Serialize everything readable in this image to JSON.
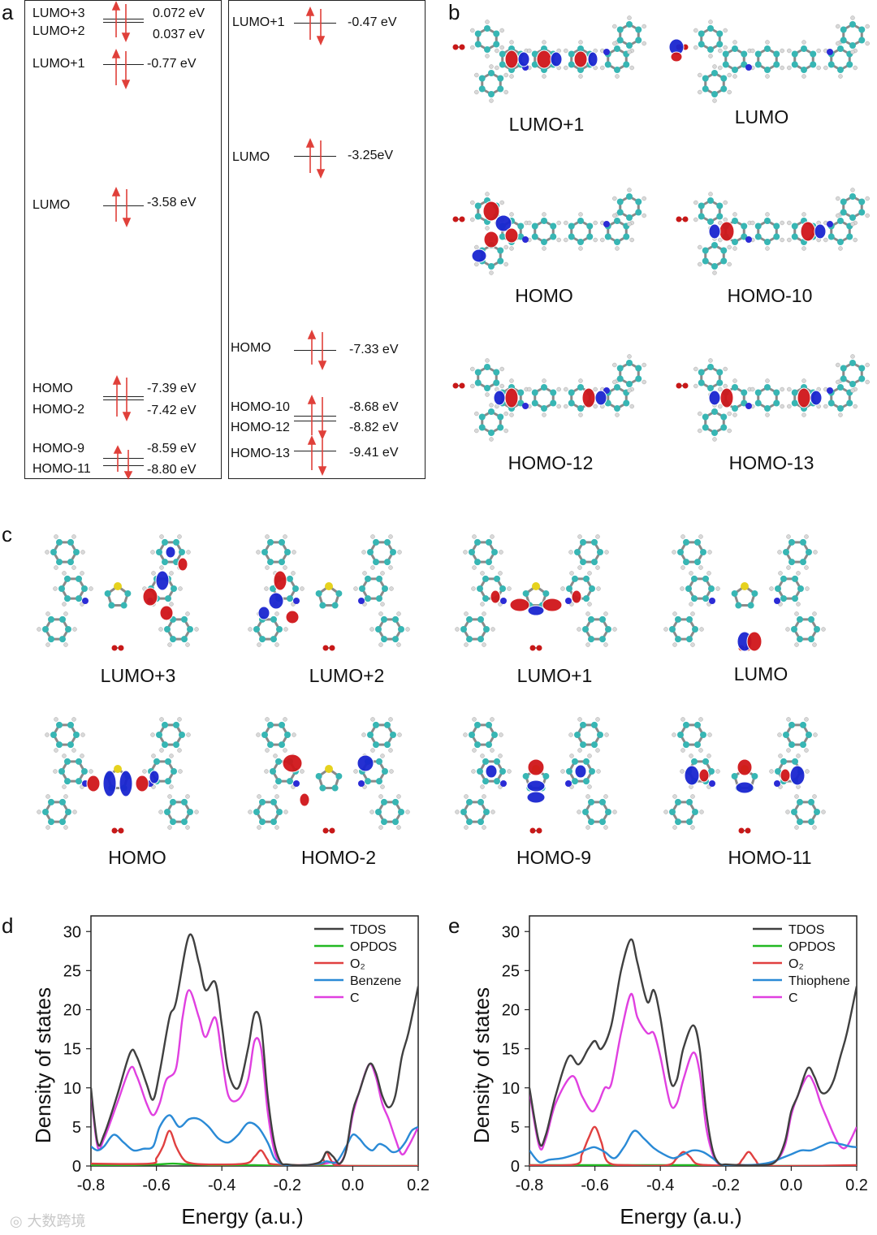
{
  "panels": {
    "a": "a",
    "b": "b",
    "c": "c",
    "d": "d",
    "e": "e"
  },
  "colors": {
    "arrow": "#e0403a",
    "carbon": "#37b6b4",
    "hydrogen": "#d9d9d9",
    "nitrogen": "#2b2bd6",
    "oxygen": "#c81818",
    "sulfur": "#e6d21e",
    "lobe_pos": "#d0161a",
    "lobe_neg": "#1a25d0"
  },
  "level_diagrams": [
    {
      "id": "left",
      "levels": [
        {
          "name": "LUMO+3",
          "value": "0.072 eV",
          "electrons": 0
        },
        {
          "name": "LUMO+2",
          "value": "0.037 eV",
          "electrons": 0
        },
        {
          "name": "LUMO+1",
          "value": "-0.77 eV",
          "electrons": 0
        },
        {
          "name": "LUMO",
          "value": "-3.58 eV",
          "electrons": 1
        },
        {
          "name": "HOMO",
          "value": "-7.39 eV",
          "electrons": 2
        },
        {
          "name": "HOMO-2",
          "value": "-7.42 eV",
          "electrons": 2
        },
        {
          "name": "HOMO-9",
          "value": "-8.59 eV",
          "electrons": 2
        },
        {
          "name": "HOMO-11",
          "value": "-8.80 eV",
          "electrons": 2
        }
      ]
    },
    {
      "id": "right",
      "levels": [
        {
          "name": "LUMO+1",
          "value": "-0.47 eV",
          "electrons": 0
        },
        {
          "name": "LUMO",
          "value": "-3.25eV",
          "electrons": 1
        },
        {
          "name": "HOMO",
          "value": "-7.33 eV",
          "electrons": 2
        },
        {
          "name": "HOMO-10",
          "value": "-8.68 eV",
          "electrons": 2
        },
        {
          "name": "HOMO-12",
          "value": "-8.82 eV",
          "electrons": 2
        },
        {
          "name": "HOMO-13",
          "value": "-9.41 eV",
          "electrons": 2
        }
      ]
    }
  ],
  "orbitals_b": [
    "LUMO+1",
    "LUMO",
    "HOMO",
    "HOMO-10",
    "HOMO-12",
    "HOMO-13"
  ],
  "orbitals_c": [
    "LUMO+3",
    "LUMO+2",
    "LUMO+1",
    "LUMO",
    "HOMO",
    "HOMO-2",
    "HOMO-9",
    "HOMO-11"
  ],
  "watermark": "大数跨境",
  "chart_data": [
    {
      "panel": "d",
      "type": "line",
      "xlabel": "Energy (a.u.)",
      "ylabel": "Density of states",
      "xlim": [
        -0.8,
        0.2
      ],
      "ylim": [
        0,
        32
      ],
      "xticks": [
        -0.8,
        -0.6,
        -0.4,
        -0.2,
        0.0,
        0.2
      ],
      "xtick_labels": [
        "-0.8",
        "-0.6",
        "-0.4",
        "-0.2",
        "0.0",
        "0.2"
      ],
      "yticks": [
        0,
        5,
        10,
        15,
        20,
        25,
        30
      ],
      "ytick_labels": [
        "0",
        "5",
        "10",
        "15",
        "20",
        "25",
        "30"
      ],
      "legend_position": "top-right",
      "series": [
        {
          "name": "TDOS",
          "color": "#404040",
          "x": [
            -0.8,
            -0.78,
            -0.76,
            -0.72,
            -0.68,
            -0.66,
            -0.63,
            -0.61,
            -0.59,
            -0.56,
            -0.54,
            -0.5,
            -0.47,
            -0.45,
            -0.42,
            -0.4,
            -0.38,
            -0.35,
            -0.32,
            -0.3,
            -0.28,
            -0.26,
            -0.24,
            -0.22,
            -0.2,
            -0.15,
            -0.1,
            -0.08,
            -0.06,
            -0.04,
            -0.02,
            0.0,
            0.02,
            0.05,
            0.07,
            0.09,
            0.11,
            0.13,
            0.15,
            0.17,
            0.2
          ],
          "y": [
            10,
            3,
            4,
            9,
            14.5,
            14,
            10.5,
            8.5,
            12,
            19,
            21,
            29.5,
            26,
            22.5,
            23.5,
            18,
            12,
            10,
            15,
            19.5,
            18,
            9,
            3,
            0.5,
            0.2,
            0.1,
            0.5,
            1.8,
            1.2,
            0.3,
            2,
            7,
            9.5,
            13,
            12,
            9,
            7.5,
            9,
            14,
            17,
            23
          ]
        },
        {
          "name": "OPDOS",
          "color": "#22b822",
          "x": [
            -0.8,
            -0.7,
            -0.6,
            -0.55,
            -0.5,
            -0.4,
            -0.3,
            -0.2,
            -0.1,
            0.0,
            0.1,
            0.2
          ],
          "y": [
            0.1,
            0.1,
            0.2,
            0.3,
            0.2,
            0.1,
            0.1,
            0.0,
            0.0,
            0.0,
            0.0,
            0.0
          ]
        },
        {
          "name": "O2",
          "label": "O₂",
          "color": "#e04040",
          "x": [
            -0.8,
            -0.62,
            -0.6,
            -0.58,
            -0.56,
            -0.54,
            -0.52,
            -0.5,
            -0.45,
            -0.33,
            -0.3,
            -0.28,
            -0.26,
            -0.24,
            -0.1,
            -0.09,
            -0.08,
            -0.07,
            -0.06,
            -0.05,
            0.0,
            0.2
          ],
          "y": [
            0.3,
            0.3,
            1.0,
            2.5,
            4.5,
            2.5,
            1.0,
            0.4,
            0.2,
            0.3,
            1.2,
            2.0,
            0.8,
            0.2,
            0.2,
            1.0,
            1.8,
            1.0,
            0.3,
            0.1,
            0.0,
            0.0
          ]
        },
        {
          "name": "Benzene",
          "color": "#2a8ad6",
          "x": [
            -0.8,
            -0.78,
            -0.76,
            -0.73,
            -0.7,
            -0.67,
            -0.64,
            -0.61,
            -0.59,
            -0.56,
            -0.53,
            -0.5,
            -0.47,
            -0.44,
            -0.41,
            -0.38,
            -0.35,
            -0.32,
            -0.29,
            -0.26,
            -0.24,
            -0.22,
            -0.2,
            -0.15,
            -0.1,
            -0.08,
            -0.05,
            -0.02,
            0.0,
            0.02,
            0.04,
            0.06,
            0.08,
            0.1,
            0.12,
            0.14,
            0.16,
            0.18,
            0.2
          ],
          "y": [
            2.5,
            2,
            2.5,
            4,
            3,
            2,
            2.2,
            2.5,
            5,
            6.5,
            5,
            6,
            6,
            5,
            3.5,
            3,
            4,
            5.5,
            5,
            3,
            1,
            0.3,
            0.1,
            0.1,
            0.3,
            0.6,
            0.5,
            2.5,
            4,
            3.5,
            2.5,
            2,
            2.8,
            2.5,
            1.8,
            2,
            3,
            4.5,
            5
          ]
        },
        {
          "name": "C",
          "color": "#e040e0",
          "x": [
            -0.8,
            -0.78,
            -0.76,
            -0.72,
            -0.68,
            -0.66,
            -0.63,
            -0.61,
            -0.59,
            -0.57,
            -0.54,
            -0.52,
            -0.5,
            -0.47,
            -0.45,
            -0.42,
            -0.4,
            -0.38,
            -0.35,
            -0.32,
            -0.3,
            -0.28,
            -0.26,
            -0.24,
            -0.22,
            -0.2,
            -0.15,
            -0.1,
            -0.06,
            -0.04,
            -0.02,
            0.0,
            0.02,
            0.05,
            0.07,
            0.09,
            0.11,
            0.13,
            0.15,
            0.17,
            0.2
          ],
          "y": [
            9.5,
            2.5,
            3.5,
            8,
            12.5,
            11.5,
            8,
            6.5,
            8,
            11,
            12.5,
            19,
            22.5,
            19,
            16.5,
            19,
            14,
            9,
            8.5,
            11,
            16,
            15,
            7,
            2,
            0.3,
            0.1,
            0.1,
            0.2,
            0.5,
            0.3,
            2,
            6.5,
            9.5,
            13,
            11.5,
            8,
            6,
            3.5,
            1.5,
            2.5,
            5
          ]
        }
      ]
    },
    {
      "panel": "e",
      "type": "line",
      "xlabel": "Energy (a.u.)",
      "ylabel": "Density of states",
      "xlim": [
        -0.8,
        0.2
      ],
      "ylim": [
        0,
        32
      ],
      "xticks": [
        -0.8,
        -0.6,
        -0.4,
        -0.2,
        0.0,
        0.2
      ],
      "xtick_labels": [
        "-0.8",
        "-0.6",
        "-0.4",
        "-0.2",
        "0.0",
        "0.2"
      ],
      "yticks": [
        0,
        5,
        10,
        15,
        20,
        25,
        30
      ],
      "ytick_labels": [
        "0",
        "5",
        "10",
        "15",
        "20",
        "25",
        "30"
      ],
      "legend_position": "top-right",
      "series": [
        {
          "name": "TDOS",
          "color": "#404040",
          "x": [
            -0.8,
            -0.77,
            -0.75,
            -0.72,
            -0.68,
            -0.65,
            -0.62,
            -0.6,
            -0.58,
            -0.55,
            -0.52,
            -0.49,
            -0.47,
            -0.44,
            -0.42,
            -0.4,
            -0.37,
            -0.35,
            -0.33,
            -0.3,
            -0.28,
            -0.26,
            -0.24,
            -0.22,
            -0.2,
            -0.15,
            -0.1,
            -0.05,
            -0.02,
            0.0,
            0.02,
            0.05,
            0.07,
            0.09,
            0.11,
            0.13,
            0.15,
            0.17,
            0.2
          ],
          "y": [
            10,
            3,
            4,
            9,
            14,
            13,
            15,
            16,
            15,
            18,
            25,
            29,
            26,
            21,
            22.5,
            19,
            11,
            11,
            15,
            18,
            15,
            7,
            2,
            0.3,
            0.2,
            0.1,
            0.1,
            0.5,
            3,
            7,
            9,
            12.5,
            11.5,
            9.5,
            9.5,
            11,
            14,
            17,
            23
          ]
        },
        {
          "name": "OPDOS",
          "color": "#22b822",
          "x": [
            -0.8,
            -0.7,
            -0.6,
            -0.5,
            -0.4,
            -0.3,
            -0.2,
            -0.1,
            0.0,
            0.1,
            0.2
          ],
          "y": [
            0.1,
            0.1,
            0.1,
            0.1,
            0.1,
            0.1,
            0.0,
            0.0,
            0.0,
            0.0,
            0.0
          ]
        },
        {
          "name": "O2",
          "label": "O₂",
          "color": "#e04040",
          "x": [
            -0.8,
            -0.66,
            -0.64,
            -0.62,
            -0.6,
            -0.58,
            -0.56,
            -0.5,
            -0.38,
            -0.35,
            -0.33,
            -0.31,
            -0.29,
            -0.25,
            -0.17,
            -0.15,
            -0.13,
            -0.11,
            -0.09,
            0.0,
            0.2
          ],
          "y": [
            0.1,
            0.2,
            1.5,
            3.5,
            5,
            3,
            0.5,
            0.1,
            0.1,
            1.0,
            1.8,
            1.2,
            0.3,
            0.1,
            0.1,
            0.8,
            1.8,
            0.8,
            0.1,
            0.0,
            0.1
          ]
        },
        {
          "name": "Thiophene",
          "color": "#2a8ad6",
          "x": [
            -0.8,
            -0.77,
            -0.74,
            -0.7,
            -0.66,
            -0.62,
            -0.6,
            -0.57,
            -0.54,
            -0.51,
            -0.48,
            -0.45,
            -0.42,
            -0.39,
            -0.36,
            -0.33,
            -0.3,
            -0.27,
            -0.24,
            -0.22,
            -0.2,
            -0.15,
            -0.1,
            -0.06,
            -0.03,
            0.0,
            0.03,
            0.06,
            0.09,
            0.12,
            0.15,
            0.18,
            0.2
          ],
          "y": [
            2,
            0.5,
            0.8,
            1,
            1.5,
            2.2,
            2.4,
            1.8,
            1,
            2.5,
            4.5,
            3.5,
            2.3,
            1.5,
            1,
            1.5,
            2.0,
            1.8,
            1,
            0.3,
            0.1,
            0.1,
            0.2,
            0.5,
            1,
            1.5,
            2,
            2,
            2.5,
            3,
            2.8,
            2.5,
            2.4
          ]
        },
        {
          "name": "C",
          "color": "#e040e0",
          "x": [
            -0.8,
            -0.77,
            -0.75,
            -0.72,
            -0.67,
            -0.64,
            -0.61,
            -0.59,
            -0.57,
            -0.55,
            -0.52,
            -0.49,
            -0.47,
            -0.44,
            -0.42,
            -0.4,
            -0.37,
            -0.35,
            -0.33,
            -0.3,
            -0.28,
            -0.26,
            -0.24,
            -0.22,
            -0.2,
            -0.15,
            -0.1,
            -0.05,
            -0.02,
            0.0,
            0.02,
            0.05,
            0.07,
            0.09,
            0.11,
            0.13,
            0.15,
            0.17,
            0.2
          ],
          "y": [
            9.5,
            2.5,
            3.5,
            8,
            11.5,
            9,
            7,
            8,
            10,
            10.5,
            17,
            22,
            19,
            17,
            17,
            14,
            8,
            8,
            11,
            14.5,
            12,
            5,
            1.5,
            0.2,
            0.1,
            0.1,
            0.1,
            0.5,
            2.5,
            6.5,
            9,
            11.5,
            10.5,
            8,
            6,
            4,
            2.5,
            2.5,
            5
          ]
        }
      ]
    }
  ]
}
